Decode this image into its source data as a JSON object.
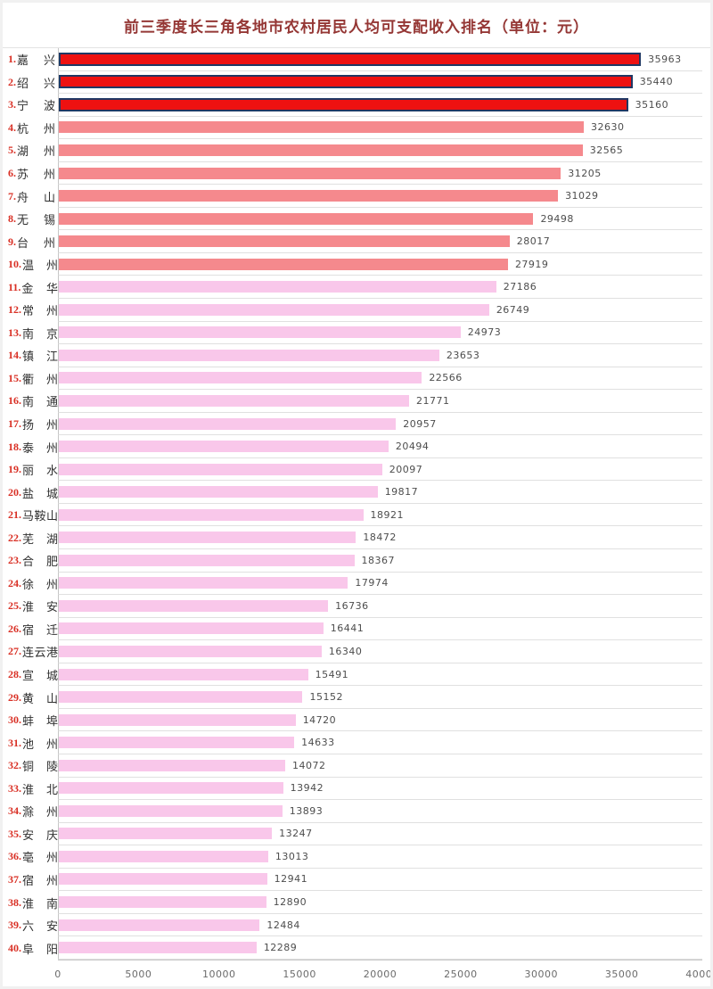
{
  "title": "前三季度长三角各地市农村居民人均可支配收入排名（单位：元）",
  "chart_data": {
    "type": "bar",
    "orientation": "horizontal",
    "title": "前三季度长三角各地市农村居民人均可支配收入排名（单位：元）",
    "unit": "元",
    "categories": [
      "嘉兴",
      "绍兴",
      "宁波",
      "杭州",
      "湖州",
      "苏州",
      "舟山",
      "无锡",
      "台州",
      "温州",
      "金华",
      "常州",
      "南京",
      "镇江",
      "衢州",
      "南通",
      "扬州",
      "泰州",
      "丽水",
      "盐城",
      "马鞍山",
      "芜湖",
      "合肥",
      "徐州",
      "淮安",
      "宿迁",
      "连云港",
      "宣城",
      "黄山",
      "蚌埠",
      "池州",
      "铜陵",
      "淮北",
      "滁州",
      "安庆",
      "亳州",
      "宿州",
      "淮南",
      "六安",
      "阜阳"
    ],
    "values": [
      35963,
      35440,
      35160,
      32630,
      32565,
      31205,
      31029,
      29498,
      28017,
      27919,
      27186,
      26749,
      24973,
      23653,
      22566,
      21771,
      20957,
      20494,
      20097,
      19817,
      18921,
      18472,
      18367,
      17974,
      16736,
      16441,
      16340,
      15491,
      15152,
      14720,
      14633,
      14072,
      13942,
      13893,
      13247,
      13013,
      12941,
      12890,
      12484,
      12289
    ],
    "ranks": [
      1,
      2,
      3,
      4,
      5,
      6,
      7,
      8,
      9,
      10,
      11,
      12,
      13,
      14,
      15,
      16,
      17,
      18,
      19,
      20,
      21,
      22,
      23,
      24,
      25,
      26,
      27,
      28,
      29,
      30,
      31,
      32,
      33,
      34,
      35,
      36,
      37,
      38,
      39,
      40
    ],
    "xlim": [
      0,
      40000
    ],
    "x_ticks": [
      "0",
      "5000",
      "10000",
      "15000",
      "20000",
      "25000",
      "30000",
      "35000",
      "40000"
    ],
    "grid": "horizontal-row-separators",
    "legend": "none",
    "colors": {
      "top3_fill": "#ee1111",
      "top3_border": "#203864",
      "rank4_10_fill": "#f5898d",
      "rank11_40_fill": "#f9c7ea",
      "title_color": "#953735",
      "rank_number_color": "#d93025",
      "city_label_color": "#303030",
      "value_label_color": "#4d4d4d",
      "axis_tick_color": "#6b6b6b"
    }
  }
}
